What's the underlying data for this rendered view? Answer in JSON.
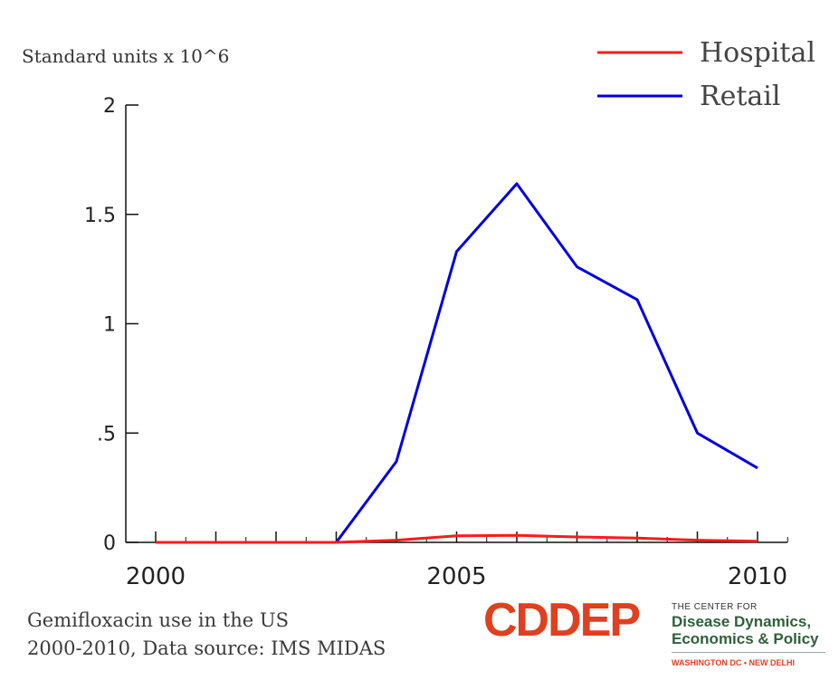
{
  "chart_data": {
    "type": "line",
    "ylabel": "Standard units x 10^6",
    "ylim": [
      0,
      2
    ],
    "xlim": [
      2000,
      2010
    ],
    "x": [
      2000,
      2001,
      2002,
      2003,
      2004,
      2005,
      2006,
      2007,
      2008,
      2009,
      2010
    ],
    "yticks": [
      {
        "value": 0,
        "label": "0"
      },
      {
        "value": 0.5,
        "label": ".5"
      },
      {
        "value": 1,
        "label": "1"
      },
      {
        "value": 1.5,
        "label": "1.5"
      },
      {
        "value": 2,
        "label": "2"
      }
    ],
    "xticks": [
      {
        "value": 2000,
        "label": "2000"
      },
      {
        "value": 2005,
        "label": "2005"
      },
      {
        "value": 2010,
        "label": "2010"
      }
    ],
    "series": [
      {
        "name": "Hospital",
        "color": "#ff1a1a",
        "values": [
          0,
          0,
          0,
          0,
          0.01,
          0.03,
          0.032,
          0.025,
          0.02,
          0.01,
          0.005
        ]
      },
      {
        "name": "Retail",
        "color": "#0000dd",
        "values": [
          0,
          0,
          0,
          0,
          0.37,
          1.33,
          1.64,
          1.26,
          1.11,
          0.5,
          0.34
        ]
      }
    ],
    "legend_position": "top-right",
    "grid": false
  },
  "caption": {
    "line1": "Gemifloxacin use in the US",
    "line2": "2000-2010, Data source: IMS MIDAS"
  },
  "logo": {
    "word": "CDDEP",
    "line1": "THE CENTER FOR",
    "line2": "Disease Dynamics,",
    "line3": "Economics & Policy",
    "line4": "WASHINGTON DC • NEW DELHI"
  }
}
